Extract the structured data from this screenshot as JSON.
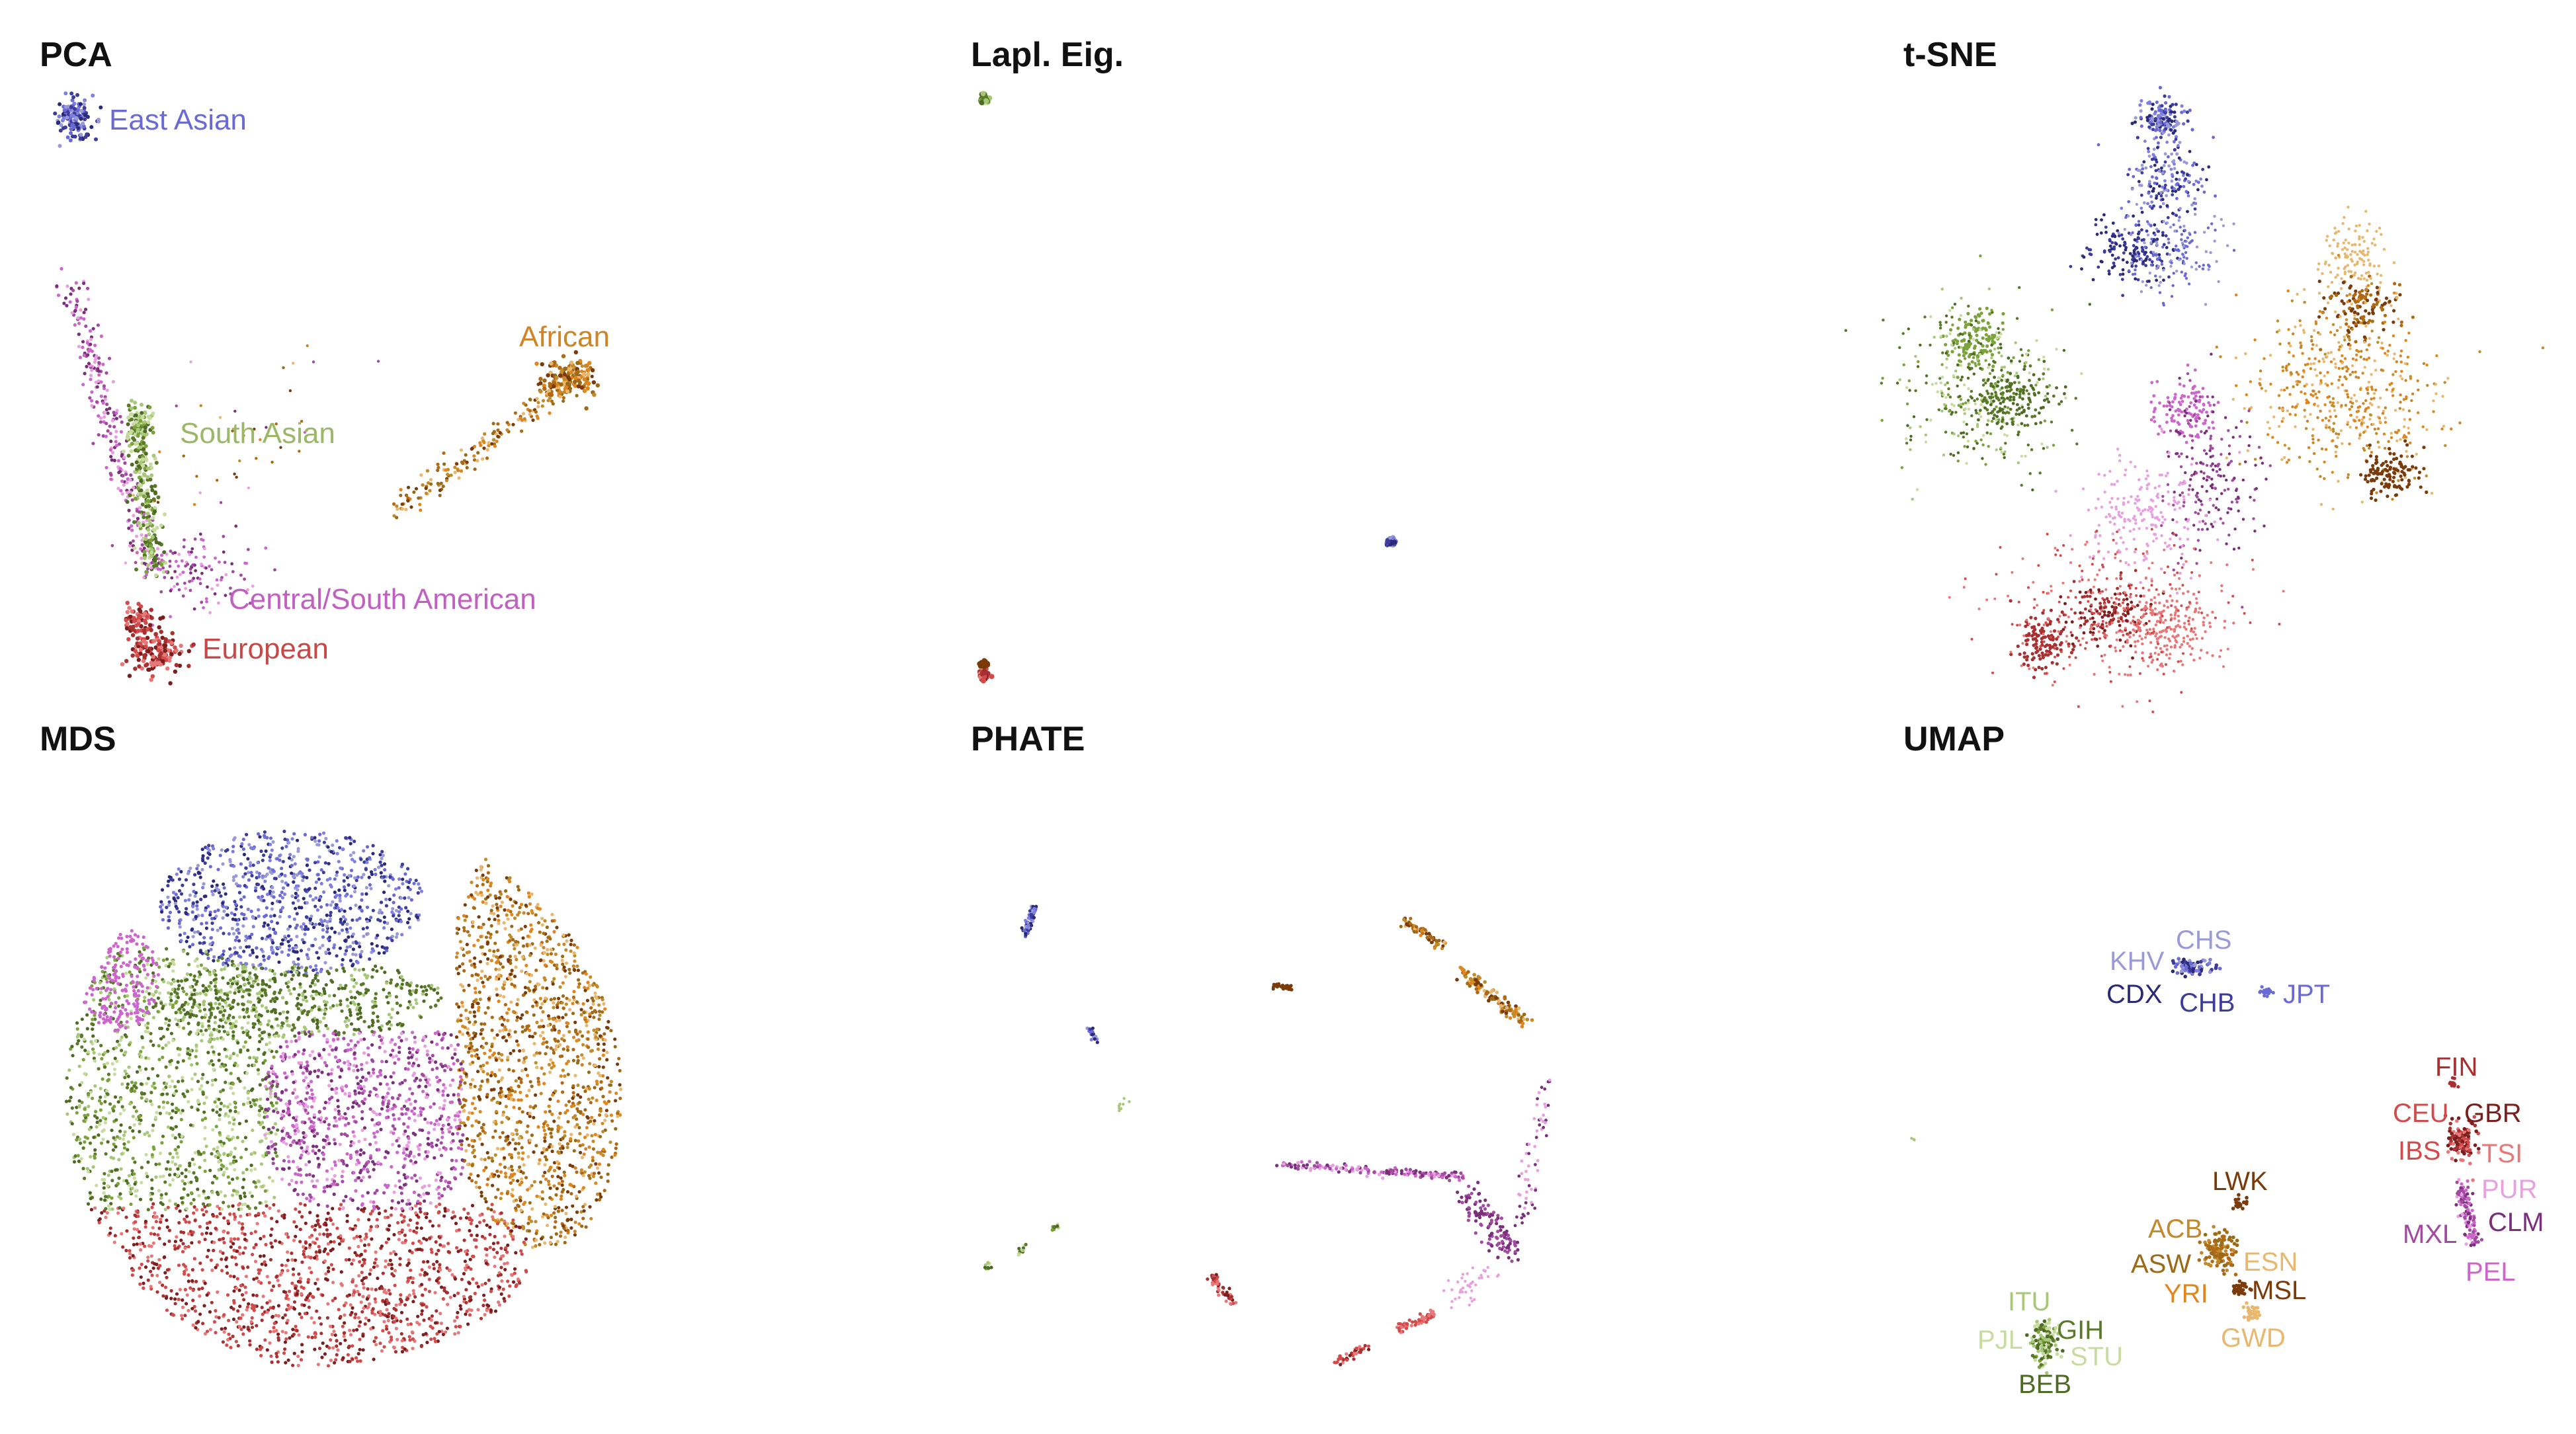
{
  "colors": {
    "East Asian": [
      "#6a6ad6",
      "#3c3c9c",
      "#9a9ad6",
      "#2a2a78",
      "#7f7fe0"
    ],
    "South Asian": [
      "#7ba33c",
      "#5a7a2a",
      "#a6c878",
      "#c8dca0",
      "#4e6b24"
    ],
    "African": [
      "#e0861c",
      "#7a3a0a",
      "#c28a2a",
      "#9a6a18",
      "#e8b870",
      "#b06a14"
    ],
    "European": [
      "#d24a4a",
      "#a83030",
      "#e87878",
      "#7a1e1e"
    ],
    "Central/South American": [
      "#cc66cc",
      "#7a2f7a",
      "#e8a0e0",
      "#a04aa0"
    ]
  },
  "chart_data": [
    {
      "type": "scatter",
      "title": "PCA",
      "annotations": [
        {
          "text": "East Asian",
          "color": "#6a6ad6"
        },
        {
          "text": "African",
          "color": "#d08428"
        },
        {
          "text": "South Asian",
          "color": "#9ab868"
        },
        {
          "text": "Central/South American",
          "color": "#c060c0"
        },
        {
          "text": "European",
          "color": "#c84848"
        }
      ]
    },
    {
      "type": "scatter",
      "title": "Lapl. Eig.",
      "annotations": []
    },
    {
      "type": "scatter",
      "title": "t-SNE",
      "annotations": []
    },
    {
      "type": "scatter",
      "title": "MDS",
      "annotations": []
    },
    {
      "type": "scatter",
      "title": "PHATE",
      "annotations": []
    },
    {
      "type": "scatter",
      "title": "UMAP",
      "annotations": [
        {
          "text": "KHV",
          "color": "#9a9ad6"
        },
        {
          "text": "CHS",
          "color": "#9a9ad6"
        },
        {
          "text": "CDX",
          "color": "#2a2a78"
        },
        {
          "text": "CHB",
          "color": "#3c3c9c"
        },
        {
          "text": "JPT",
          "color": "#6a6ad6"
        },
        {
          "text": "FIN",
          "color": "#a83030"
        },
        {
          "text": "CEU",
          "color": "#d24a4a"
        },
        {
          "text": "GBR",
          "color": "#7a1e1e"
        },
        {
          "text": "IBS",
          "color": "#d24a4a"
        },
        {
          "text": "TSI",
          "color": "#e87878"
        },
        {
          "text": "PUR",
          "color": "#e8a0e0"
        },
        {
          "text": "CLM",
          "color": "#7a2f7a"
        },
        {
          "text": "MXL",
          "color": "#a04aa0"
        },
        {
          "text": "PEL",
          "color": "#cc66cc"
        },
        {
          "text": "LWK",
          "color": "#7a3a0a"
        },
        {
          "text": "ACB",
          "color": "#c28a2a"
        },
        {
          "text": "ASW",
          "color": "#9a6a18"
        },
        {
          "text": "ESN",
          "color": "#e8b870"
        },
        {
          "text": "YRI",
          "color": "#e0861c"
        },
        {
          "text": "MSL",
          "color": "#7a3a0a"
        },
        {
          "text": "GWD",
          "color": "#e8b870"
        },
        {
          "text": "ITU",
          "color": "#a6c878"
        },
        {
          "text": "GIH",
          "color": "#5a7a2a"
        },
        {
          "text": "PJL",
          "color": "#c8dca0"
        },
        {
          "text": "STU",
          "color": "#c8dca0"
        },
        {
          "text": "BEB",
          "color": "#4e6b24"
        }
      ]
    }
  ]
}
